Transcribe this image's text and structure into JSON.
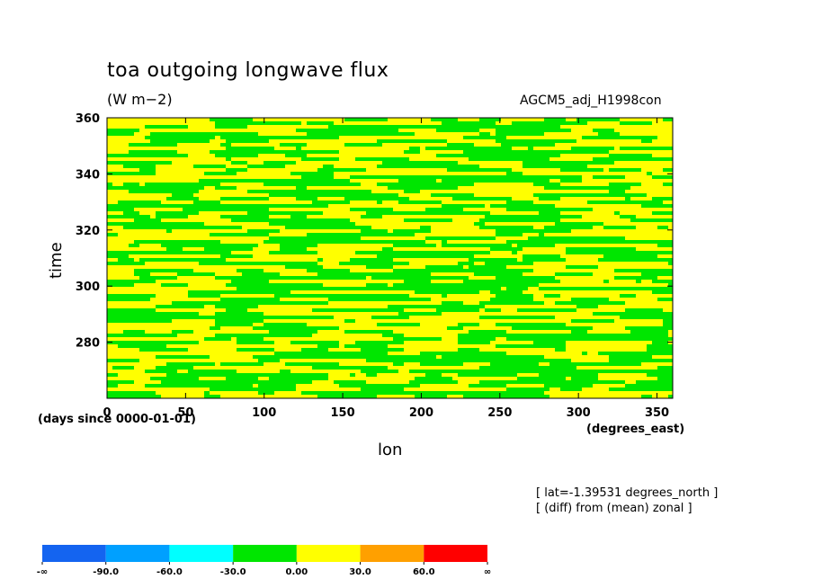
{
  "chart_data": {
    "type": "heatmap",
    "title": "toa outgoing longwave flux",
    "units": "(W m−2)",
    "dataset": "AGCM5_adj_H1998con",
    "xlabel": "lon",
    "ylabel": "time",
    "x_units_note": "(degrees_east)",
    "y_units_note": "(days since 0000-01-01)",
    "xlim": [
      0,
      360
    ],
    "ylim": [
      260,
      360
    ],
    "x_ticks": [
      0,
      50,
      100,
      150,
      200,
      250,
      300,
      350
    ],
    "y_ticks": [
      280,
      300,
      320,
      340,
      360
    ],
    "annotations": [
      "[ lat=-1.39531 degrees_north ]",
      "[ (diff) from (mean) zonal ]"
    ],
    "colorbar": {
      "labels": [
        "-∞",
        "-90.0",
        "-60.0",
        "-30.0",
        "0.00",
        "30.0",
        "60.0",
        "∞"
      ],
      "colors": [
        "#1464f0",
        "#00a0ff",
        "#00ffff",
        "#00e600",
        "#ffff00",
        "#ffa000",
        "#ff0000"
      ]
    },
    "field_summary": "Noisy mix of two classes: values in [-30, 0) (green) and [0, 30) (yellow), with streaky patches elongated in longitude"
  }
}
